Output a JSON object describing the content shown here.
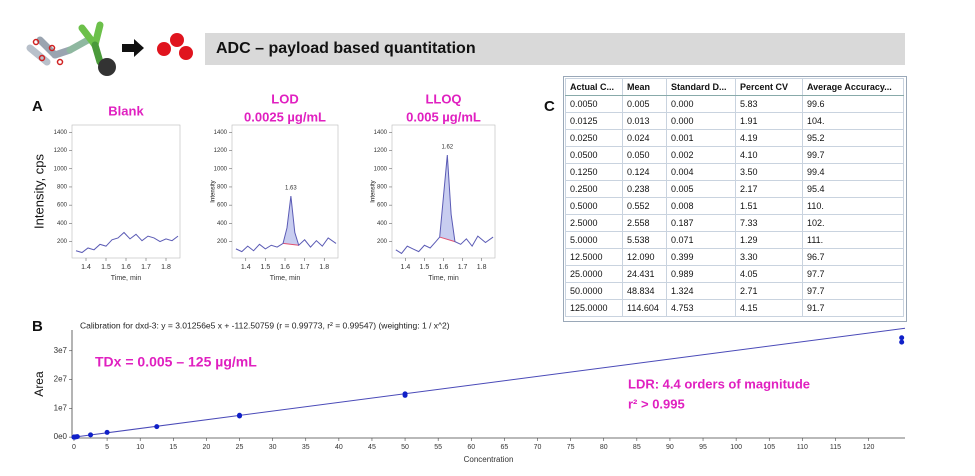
{
  "header": {
    "title": "ADC – payload based quantitation"
  },
  "panel_labels": [
    "A",
    "B",
    "C"
  ],
  "chart_data": [
    {
      "type": "line",
      "title": "Blank",
      "y_label": "Intensity, cps",
      "x_label": "Time, min",
      "x": [
        1.35,
        1.38,
        1.41,
        1.44,
        1.47,
        1.5,
        1.53,
        1.56,
        1.59,
        1.62,
        1.65,
        1.68,
        1.71,
        1.74,
        1.77,
        1.8,
        1.83,
        1.86
      ],
      "values": [
        100,
        80,
        130,
        110,
        170,
        150,
        220,
        240,
        300,
        230,
        280,
        210,
        260,
        240,
        200,
        230,
        210,
        260
      ],
      "color": "#5b5bb5",
      "xlim": [
        1.33,
        1.87
      ],
      "ylim": [
        20,
        1480
      ],
      "xticks": [
        1.4,
        1.5,
        1.6,
        1.7,
        1.8
      ],
      "yticks": [
        200,
        400,
        600,
        800,
        1000,
        1200,
        1400
      ]
    },
    {
      "type": "line",
      "title": "LOD",
      "subtitle": "0.0025 µg/mL",
      "y_label": "Intensity",
      "x_label": "Time, min",
      "x": [
        1.35,
        1.38,
        1.41,
        1.44,
        1.47,
        1.5,
        1.53,
        1.56,
        1.59,
        1.61,
        1.63,
        1.65,
        1.67,
        1.7,
        1.73,
        1.76,
        1.79,
        1.82,
        1.86
      ],
      "values": [
        120,
        90,
        150,
        100,
        170,
        120,
        160,
        140,
        180,
        350,
        700,
        300,
        160,
        220,
        140,
        210,
        150,
        240,
        180
      ],
      "peak_label": 1.63,
      "color": "#5b5bb5",
      "xlim": [
        1.33,
        1.87
      ],
      "ylim": [
        20,
        1480
      ],
      "xticks": [
        1.4,
        1.5,
        1.6,
        1.7,
        1.8
      ],
      "yticks": [
        200,
        400,
        600,
        800,
        1000,
        1200,
        1400
      ]
    },
    {
      "type": "line",
      "title": "LLOQ",
      "subtitle": "0.005 µg/mL",
      "y_label": "Intensity",
      "x_label": "Time, min",
      "x": [
        1.35,
        1.38,
        1.41,
        1.44,
        1.47,
        1.5,
        1.53,
        1.56,
        1.58,
        1.6,
        1.62,
        1.64,
        1.66,
        1.69,
        1.72,
        1.75,
        1.78,
        1.82,
        1.86
      ],
      "values": [
        110,
        70,
        150,
        120,
        90,
        160,
        130,
        200,
        250,
        700,
        1150,
        500,
        200,
        170,
        230,
        150,
        260,
        190,
        250
      ],
      "peak_label": 1.62,
      "color": "#5b5bb5",
      "xlim": [
        1.33,
        1.87
      ],
      "ylim": [
        20,
        1480
      ],
      "xticks": [
        1.4,
        1.5,
        1.6,
        1.7,
        1.8
      ],
      "yticks": [
        200,
        400,
        600,
        800,
        1000,
        1200,
        1400
      ]
    },
    {
      "type": "scatter",
      "title": "Calibration for dxd-3: y = 3.01256e5 x + -112.50759 (r = 0.99773, r² = 0.99547)  (weighting: 1 / x^2)",
      "x_label": "Concentration",
      "y_label": "Area",
      "annotations": [
        "TDx = 0.005 – 125 µg/mL",
        "LDR: 4.4 orders of magnitude",
        "r² > 0.995"
      ],
      "points": {
        "color": "#1020c8",
        "x": [
          0.005,
          0.0125,
          0.025,
          0.05,
          0.125,
          0.25,
          0.5,
          2.5,
          5,
          12.5,
          25,
          25,
          50,
          50,
          125,
          125
        ],
        "values": [
          1500,
          3800,
          7500,
          15000,
          37000,
          72000,
          166000,
          770000,
          1660000,
          3640000,
          7350000,
          7600000,
          14500000,
          15000000,
          33000000,
          34500000
        ]
      },
      "fit": {
        "color": "#4a4ab8",
        "x": [
          0,
          125.5
        ],
        "values": [
          -112.5,
          37807000
        ]
      },
      "xlim": [
        -0.3,
        125.5
      ],
      "ylim": [
        -300000,
        37200000
      ],
      "xticks": [
        0,
        5,
        10,
        15,
        20,
        25,
        30,
        35,
        40,
        45,
        50,
        55,
        60,
        65,
        70,
        75,
        80,
        85,
        90,
        95,
        100,
        105,
        110,
        115,
        120
      ],
      "yticks": [
        {
          "value": 0,
          "label": "0e0"
        },
        {
          "value": 10000000,
          "label": "1e7"
        },
        {
          "value": 20000000,
          "label": "2e7"
        },
        {
          "value": 30000000,
          "label": "3e7"
        }
      ]
    }
  ],
  "table": {
    "columns": [
      "Actual C...",
      "Mean",
      "Standard D...",
      "Percent CV",
      "Average  Accuracy..."
    ],
    "rows": [
      [
        "0.0050",
        "0.005",
        "0.000",
        "5.83",
        "99.6"
      ],
      [
        "0.0125",
        "0.013",
        "0.000",
        "1.91",
        "104."
      ],
      [
        "0.0250",
        "0.024",
        "0.001",
        "4.19",
        "95.2"
      ],
      [
        "0.0500",
        "0.050",
        "0.002",
        "4.10",
        "99.7"
      ],
      [
        "0.1250",
        "0.124",
        "0.004",
        "3.50",
        "99.4"
      ],
      [
        "0.2500",
        "0.238",
        "0.005",
        "2.17",
        "95.4"
      ],
      [
        "0.5000",
        "0.552",
        "0.008",
        "1.51",
        "110."
      ],
      [
        "2.5000",
        "2.558",
        "0.187",
        "7.33",
        "102."
      ],
      [
        "5.0000",
        "5.538",
        "0.071",
        "1.29",
        "111."
      ],
      [
        "12.5000",
        "12.090",
        "0.399",
        "3.30",
        "96.7"
      ],
      [
        "25.0000",
        "24.431",
        "0.989",
        "4.05",
        "97.7"
      ],
      [
        "50.0000",
        "48.834",
        "1.324",
        "2.71",
        "97.7"
      ],
      [
        "125.0000",
        "114.604",
        "4.753",
        "4.15",
        "91.7"
      ]
    ]
  }
}
